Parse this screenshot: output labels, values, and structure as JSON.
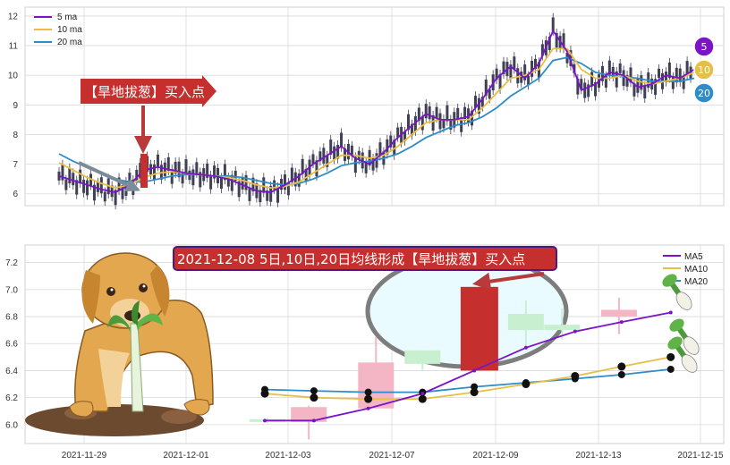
{
  "colors": {
    "ma5": "#7b13c9",
    "ma10": "#e8bf45",
    "ma20": "#2e8cc8",
    "candle_top": "#3f3f55",
    "up_fill": "#f4b6c4",
    "down_fill": "#c8f0d0",
    "big_red": "#c5302f",
    "arrow_red": "#b83a3a",
    "grid": "#d9d9d9",
    "banner_bg": "#c5302f",
    "banner_border": "#4a1a86",
    "ellipse_fill": "#e9fbff",
    "ellipse_stroke": "#7d7d7d"
  },
  "top_panel": {
    "legend": [
      "5 ma",
      "10 ma",
      "20 ma"
    ],
    "y_ticks": [
      "6",
      "7",
      "8",
      "9",
      "10",
      "11",
      "12"
    ],
    "callout_text": "【旱地拔葱】买入点",
    "badges": [
      "5",
      "10",
      "20"
    ]
  },
  "bottom_panel": {
    "banner_text": "2021-12-08 5日,10日,20日均线形成【旱地拔葱】买入点",
    "legend": [
      "MA5",
      "MA10",
      "MA20"
    ],
    "y_ticks": [
      "6.0",
      "6.2",
      "6.4",
      "6.6",
      "6.8",
      "7.0",
      "7.2"
    ],
    "x_ticks": [
      "2021-11-29",
      "2021-12-01",
      "2021-12-03",
      "2021-12-07",
      "2021-12-09",
      "2021-12-13",
      "2021-12-15"
    ]
  },
  "chart_data": [
    {
      "type": "candlestick",
      "panel": "top",
      "ylim": [
        5.6,
        12.3
      ],
      "series_names": [
        "5 ma",
        "10 ma",
        "20 ma"
      ],
      "ma5_approx": [
        6.6,
        6.45,
        6.3,
        6.15,
        6.05,
        6.3,
        6.8,
        6.9,
        6.8,
        6.7,
        6.65,
        6.6,
        6.5,
        6.3,
        6.1,
        6.05,
        6.3,
        6.6,
        7.0,
        7.3,
        7.6,
        7.2,
        7.0,
        7.4,
        7.9,
        8.3,
        8.7,
        8.5,
        8.5,
        8.6,
        9.2,
        9.9,
        10.3,
        9.9,
        10.4,
        11.5,
        10.8,
        9.5,
        9.7,
        10.1,
        10.0,
        9.6,
        9.7,
        10.0,
        9.9,
        10.2
      ],
      "ma10_approx": [
        7.05,
        6.8,
        6.55,
        6.35,
        6.2,
        6.3,
        6.55,
        6.7,
        6.75,
        6.7,
        6.65,
        6.6,
        6.55,
        6.45,
        6.3,
        6.2,
        6.25,
        6.4,
        6.7,
        7.0,
        7.3,
        7.3,
        7.2,
        7.3,
        7.6,
        8.0,
        8.4,
        8.5,
        8.5,
        8.5,
        8.9,
        9.4,
        9.9,
        10.0,
        10.2,
        10.9,
        10.9,
        10.2,
        9.9,
        9.9,
        10.0,
        9.8,
        9.7,
        9.8,
        9.9,
        10.1
      ],
      "ma20_approx": [
        7.35,
        7.1,
        6.9,
        6.7,
        6.5,
        6.4,
        6.4,
        6.5,
        6.6,
        6.65,
        6.65,
        6.6,
        6.6,
        6.55,
        6.45,
        6.35,
        6.3,
        6.35,
        6.5,
        6.7,
        6.95,
        7.05,
        7.1,
        7.2,
        7.35,
        7.6,
        7.9,
        8.1,
        8.3,
        8.4,
        8.6,
        8.9,
        9.3,
        9.6,
        9.9,
        10.5,
        10.6,
        10.4,
        10.1,
        10.0,
        9.95,
        9.9,
        9.8,
        9.8,
        9.8,
        9.9
      ]
    },
    {
      "type": "candlestick",
      "panel": "bottom",
      "ylim": [
        5.86,
        7.33
      ],
      "series_names": [
        "MA5",
        "MA10",
        "MA20"
      ],
      "candles": [
        {
          "x": 0.5,
          "open": 6.04,
          "close": 6.02,
          "high": 6.05,
          "low": 6.01
        },
        {
          "x": 1.3,
          "open": 6.02,
          "close": 6.13,
          "high": 6.14,
          "low": 5.89
        },
        {
          "x": 2.6,
          "open": 6.12,
          "close": 6.46,
          "high": 6.65,
          "low": 6.12
        },
        {
          "x": 3.5,
          "open": 6.55,
          "close": 6.45,
          "high": 6.55,
          "low": 6.4
        },
        {
          "x": 4.6,
          "open": 6.4,
          "close": 7.02,
          "high": 7.02,
          "low": 6.4
        },
        {
          "x": 5.5,
          "open": 6.82,
          "close": 6.7,
          "high": 6.92,
          "low": 6.58
        },
        {
          "x": 6.2,
          "open": 6.74,
          "close": 6.7,
          "high": 6.86,
          "low": 6.63
        },
        {
          "x": 7.3,
          "open": 6.8,
          "close": 6.85,
          "high": 6.94,
          "low": 6.67
        }
      ],
      "MA5": [
        [
          0.45,
          6.03
        ],
        [
          1.4,
          6.03
        ],
        [
          2.45,
          6.12
        ],
        [
          3.5,
          6.23
        ],
        [
          4.5,
          6.4
        ],
        [
          5.5,
          6.57
        ],
        [
          6.45,
          6.69
        ],
        [
          7.35,
          6.76
        ],
        [
          8.3,
          6.83
        ]
      ],
      "MA10": [
        [
          0.45,
          6.23
        ],
        [
          1.4,
          6.2
        ],
        [
          2.45,
          6.19
        ],
        [
          3.5,
          6.19
        ],
        [
          4.5,
          6.24
        ],
        [
          5.5,
          6.3
        ],
        [
          6.45,
          6.36
        ],
        [
          7.35,
          6.43
        ],
        [
          8.3,
          6.5
        ]
      ],
      "MA20": [
        [
          0.45,
          6.26
        ],
        [
          1.4,
          6.25
        ],
        [
          2.45,
          6.24
        ],
        [
          3.5,
          6.24
        ],
        [
          4.5,
          6.28
        ],
        [
          5.5,
          6.31
        ],
        [
          6.45,
          6.34
        ],
        [
          7.35,
          6.37
        ],
        [
          8.3,
          6.41
        ]
      ]
    }
  ]
}
